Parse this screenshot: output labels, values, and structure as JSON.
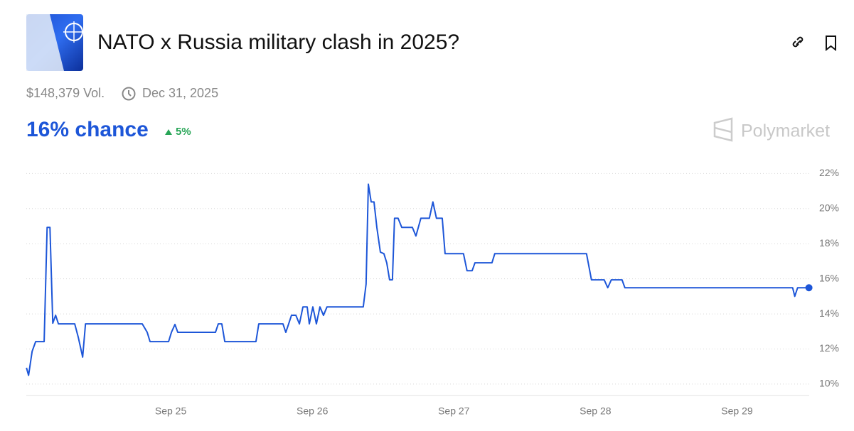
{
  "header": {
    "title": "NATO x Russia military clash in 2025?",
    "volume": "$148,379 Vol.",
    "end_date": "Dec 31, 2025",
    "chance": "16% chance",
    "change": "5%",
    "brand": "Polymarket"
  },
  "chart_data": {
    "type": "line",
    "x": [
      23.981,
      23.996,
      24.021,
      24.046,
      24.106,
      24.127,
      24.147,
      24.167,
      24.187,
      24.207,
      24.322,
      24.347,
      24.378,
      24.398,
      24.799,
      24.834,
      24.854,
      24.985,
      25.005,
      25.03,
      25.05,
      25.316,
      25.336,
      25.361,
      25.382,
      25.602,
      25.622,
      25.793,
      25.813,
      25.833,
      25.853,
      25.884,
      25.909,
      25.934,
      25.964,
      25.979,
      26.004,
      26.029,
      26.054,
      26.079,
      26.104,
      26.36,
      26.38,
      26.396,
      26.416,
      26.436,
      26.456,
      26.481,
      26.506,
      26.526,
      26.546,
      26.566,
      26.581,
      26.606,
      26.632,
      26.707,
      26.732,
      26.767,
      26.827,
      26.852,
      26.877,
      26.918,
      26.938,
      27.068,
      27.093,
      27.129,
      27.149,
      27.269,
      27.289,
      27.937,
      27.972,
      28.062,
      28.087,
      28.112,
      28.188,
      28.208,
      29.393,
      29.408,
      29.428,
      29.508
    ],
    "series": [
      {
        "color": "#1d56d8",
        "values": [
          10.93,
          10.5,
          11.86,
          12.42,
          12.42,
          18.93,
          18.93,
          13.47,
          13.92,
          13.43,
          13.43,
          12.67,
          11.54,
          13.43,
          13.43,
          12.95,
          12.42,
          12.42,
          12.95,
          13.4,
          12.95,
          12.95,
          13.43,
          13.43,
          12.42,
          12.42,
          13.43,
          13.43,
          12.95,
          13.43,
          13.92,
          13.92,
          13.43,
          14.4,
          14.4,
          13.43,
          14.4,
          13.43,
          14.4,
          13.92,
          14.4,
          14.4,
          15.7,
          21.39,
          20.38,
          20.38,
          18.93,
          17.52,
          17.43,
          16.91,
          15.94,
          15.94,
          19.45,
          19.45,
          18.93,
          18.93,
          18.44,
          19.45,
          19.45,
          20.38,
          19.45,
          19.45,
          17.43,
          17.43,
          16.46,
          16.46,
          16.91,
          16.91,
          17.43,
          17.43,
          15.94,
          15.94,
          15.49,
          15.94,
          15.94,
          15.49,
          15.49,
          15.0,
          15.49,
          15.49
        ]
      }
    ],
    "xlim": [
      23.98,
      29.51
    ],
    "xticks": [
      {
        "value": 25,
        "label": "Sep 25"
      },
      {
        "value": 26,
        "label": "Sep 26"
      },
      {
        "value": 27,
        "label": "Sep 27"
      },
      {
        "value": 28,
        "label": "Sep 28"
      },
      {
        "value": 29,
        "label": "Sep 29"
      }
    ],
    "ylim": [
      9.35,
      22.5
    ],
    "yticks": [
      {
        "value": 10,
        "label": "10%"
      },
      {
        "value": 12,
        "label": "12%"
      },
      {
        "value": 14,
        "label": "14%"
      },
      {
        "value": 16,
        "label": "16%"
      },
      {
        "value": 18,
        "label": "18%"
      },
      {
        "value": 20,
        "label": "20%"
      },
      {
        "value": 22,
        "label": "22%"
      }
    ],
    "grid": true
  }
}
